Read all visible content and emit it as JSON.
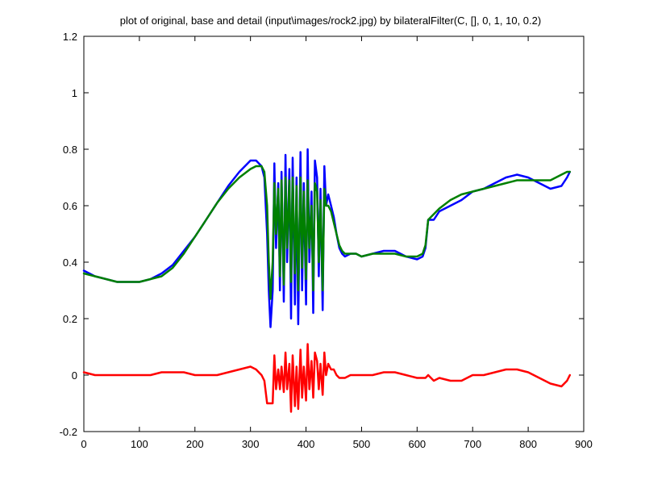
{
  "chart_data": {
    "type": "line",
    "title": "plot of original, base and detail (input\\images/rock2.jpg) by bilateralFilter(C, [], 0, 1, 10, 0.2)",
    "xlabel": "",
    "ylabel": "",
    "xlim": [
      0,
      900
    ],
    "ylim": [
      -0.2,
      1.2
    ],
    "xticks": [
      0,
      100,
      200,
      300,
      400,
      500,
      600,
      700,
      800,
      900
    ],
    "yticks": [
      -0.2,
      0,
      0.2,
      0.4,
      0.6,
      0.8,
      1,
      1.2
    ],
    "xtick_labels": [
      "0",
      "100",
      "200",
      "300",
      "400",
      "500",
      "600",
      "700",
      "800",
      "900"
    ],
    "ytick_labels": [
      "-0.2",
      "0",
      "0.2",
      "0.4",
      "0.6",
      "0.8",
      "1",
      "1.2"
    ],
    "grid": false,
    "legend": "none",
    "series": [
      {
        "role": "original",
        "color": "#0000ff",
        "x": [
          0,
          20,
          40,
          60,
          80,
          100,
          120,
          140,
          160,
          180,
          200,
          220,
          240,
          260,
          280,
          300,
          310,
          320,
          325,
          330,
          333,
          336,
          340,
          343,
          346,
          350,
          353,
          356,
          360,
          363,
          366,
          370,
          373,
          376,
          380,
          383,
          386,
          390,
          393,
          396,
          400,
          403,
          406,
          410,
          413,
          416,
          420,
          423,
          426,
          430,
          433,
          436,
          440,
          445,
          450,
          455,
          460,
          465,
          470,
          480,
          490,
          500,
          520,
          540,
          560,
          580,
          600,
          610,
          615,
          620,
          630,
          640,
          660,
          680,
          700,
          720,
          740,
          760,
          780,
          800,
          820,
          840,
          860,
          870,
          875
        ],
        "y": [
          0.37,
          0.35,
          0.34,
          0.33,
          0.33,
          0.33,
          0.34,
          0.36,
          0.39,
          0.44,
          0.49,
          0.55,
          0.61,
          0.67,
          0.72,
          0.76,
          0.76,
          0.74,
          0.7,
          0.5,
          0.3,
          0.17,
          0.3,
          0.75,
          0.45,
          0.68,
          0.3,
          0.72,
          0.26,
          0.78,
          0.4,
          0.73,
          0.2,
          0.77,
          0.25,
          0.7,
          0.18,
          0.79,
          0.3,
          0.68,
          0.25,
          0.8,
          0.4,
          0.65,
          0.22,
          0.76,
          0.7,
          0.35,
          0.66,
          0.23,
          0.74,
          0.6,
          0.64,
          0.6,
          0.56,
          0.5,
          0.45,
          0.43,
          0.42,
          0.43,
          0.43,
          0.42,
          0.43,
          0.44,
          0.44,
          0.42,
          0.41,
          0.42,
          0.45,
          0.55,
          0.55,
          0.58,
          0.6,
          0.62,
          0.65,
          0.66,
          0.68,
          0.7,
          0.71,
          0.7,
          0.68,
          0.66,
          0.67,
          0.7,
          0.72
        ]
      },
      {
        "role": "base",
        "color": "#008000",
        "x": [
          0,
          20,
          40,
          60,
          80,
          100,
          120,
          140,
          160,
          180,
          200,
          220,
          240,
          260,
          280,
          300,
          310,
          320,
          325,
          330,
          333,
          336,
          340,
          343,
          346,
          350,
          353,
          356,
          360,
          363,
          366,
          370,
          373,
          376,
          380,
          383,
          386,
          390,
          393,
          396,
          400,
          403,
          406,
          410,
          413,
          416,
          420,
          423,
          426,
          430,
          433,
          436,
          440,
          445,
          450,
          455,
          460,
          465,
          470,
          480,
          490,
          500,
          520,
          540,
          560,
          580,
          600,
          610,
          615,
          620,
          630,
          640,
          660,
          680,
          700,
          720,
          740,
          760,
          780,
          800,
          820,
          840,
          860,
          870,
          875
        ],
        "y": [
          0.36,
          0.35,
          0.34,
          0.33,
          0.33,
          0.33,
          0.34,
          0.35,
          0.38,
          0.43,
          0.49,
          0.55,
          0.61,
          0.66,
          0.7,
          0.73,
          0.74,
          0.74,
          0.72,
          0.6,
          0.4,
          0.27,
          0.4,
          0.68,
          0.5,
          0.66,
          0.35,
          0.69,
          0.32,
          0.7,
          0.45,
          0.69,
          0.33,
          0.7,
          0.36,
          0.67,
          0.3,
          0.7,
          0.38,
          0.65,
          0.34,
          0.69,
          0.45,
          0.6,
          0.3,
          0.68,
          0.65,
          0.4,
          0.62,
          0.3,
          0.66,
          0.6,
          0.6,
          0.58,
          0.54,
          0.5,
          0.46,
          0.44,
          0.43,
          0.43,
          0.43,
          0.42,
          0.43,
          0.43,
          0.43,
          0.42,
          0.42,
          0.43,
          0.46,
          0.55,
          0.57,
          0.59,
          0.62,
          0.64,
          0.65,
          0.66,
          0.67,
          0.68,
          0.69,
          0.69,
          0.69,
          0.69,
          0.71,
          0.72,
          0.72
        ]
      },
      {
        "role": "detail",
        "color": "#ff0000",
        "x": [
          0,
          20,
          40,
          60,
          80,
          100,
          120,
          140,
          160,
          180,
          200,
          220,
          240,
          260,
          280,
          300,
          310,
          320,
          325,
          330,
          333,
          336,
          340,
          343,
          346,
          350,
          353,
          356,
          360,
          363,
          366,
          370,
          373,
          376,
          380,
          383,
          386,
          390,
          393,
          396,
          400,
          403,
          406,
          410,
          413,
          416,
          420,
          423,
          426,
          430,
          433,
          436,
          440,
          445,
          450,
          455,
          460,
          465,
          470,
          480,
          490,
          500,
          520,
          540,
          560,
          580,
          600,
          610,
          615,
          620,
          630,
          640,
          660,
          680,
          700,
          720,
          740,
          760,
          780,
          800,
          820,
          840,
          860,
          870,
          875
        ],
        "y": [
          0.01,
          0.0,
          0.0,
          0.0,
          0.0,
          0.0,
          0.0,
          0.01,
          0.01,
          0.01,
          0.0,
          0.0,
          0.0,
          0.01,
          0.02,
          0.03,
          0.02,
          0.0,
          -0.02,
          -0.1,
          -0.1,
          -0.1,
          -0.1,
          0.07,
          -0.05,
          0.02,
          -0.05,
          0.03,
          -0.06,
          0.08,
          -0.05,
          0.04,
          -0.13,
          0.07,
          -0.11,
          0.03,
          -0.12,
          0.09,
          -0.08,
          0.03,
          -0.09,
          0.11,
          -0.05,
          0.05,
          -0.08,
          0.08,
          0.05,
          -0.05,
          0.04,
          -0.07,
          0.08,
          0.0,
          0.04,
          0.02,
          0.02,
          0.0,
          -0.01,
          -0.01,
          -0.01,
          0.0,
          0.0,
          0.0,
          0.0,
          0.01,
          0.01,
          0.0,
          -0.01,
          -0.01,
          -0.01,
          0.0,
          -0.02,
          -0.01,
          -0.02,
          -0.02,
          0.0,
          0.0,
          0.01,
          0.02,
          0.02,
          0.01,
          -0.01,
          -0.03,
          -0.04,
          -0.02,
          0.0
        ]
      }
    ]
  }
}
